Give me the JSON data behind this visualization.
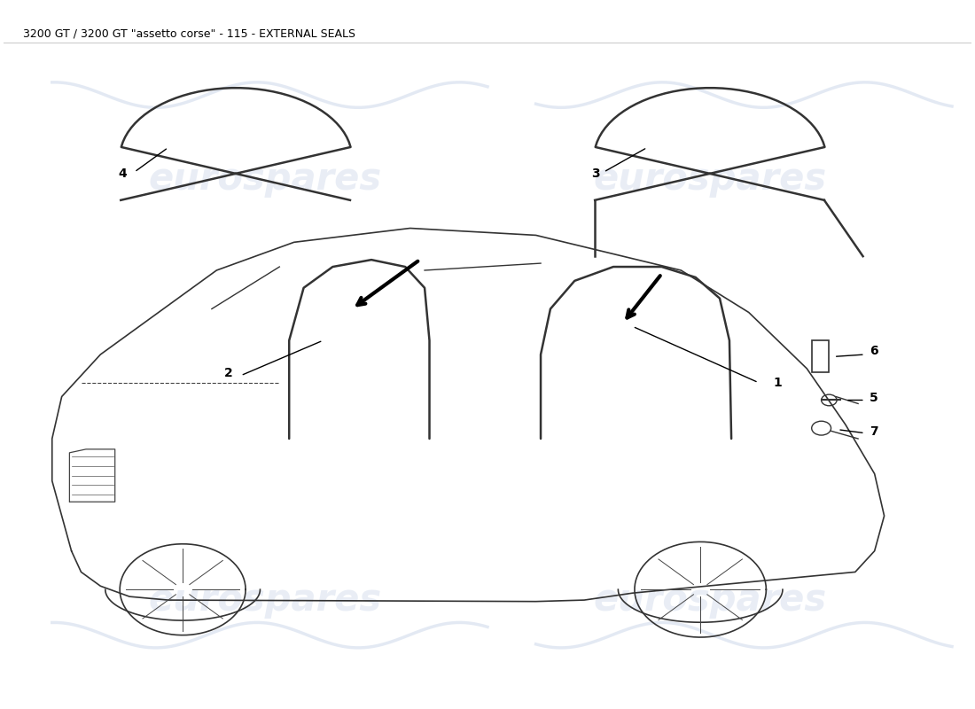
{
  "title": "3200 GT / 3200 GT \"assetto corse\" - 115 - EXTERNAL SEALS",
  "title_fontsize": 9,
  "background_color": "#ffffff",
  "watermark_text": "eurospares",
  "watermark_color": "#c8d4e8",
  "watermark_alpha": 0.4,
  "line_color": "#000000",
  "diagram_color": "#222222"
}
